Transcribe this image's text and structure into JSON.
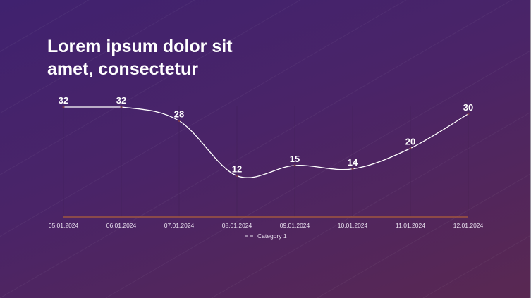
{
  "chart_data": {
    "type": "line",
    "title": "Lorem ipsum dolor sit amet, consectetur",
    "categories": [
      "05.01.2024",
      "06.01.2024",
      "07.01.2024",
      "08.01.2024",
      "09.01.2024",
      "10.01.2024",
      "11.01.2024",
      "12.01.2024"
    ],
    "series": [
      {
        "name": "Category 1",
        "values": [
          32,
          32,
          28,
          12,
          15,
          14,
          20,
          30
        ],
        "color": "#ffffff"
      }
    ],
    "ylim": [
      0,
      32
    ],
    "smooth": true,
    "data_labels": true,
    "legend": "bottom",
    "grid": false,
    "colors": {
      "axis": "#b0603a",
      "background_start": "#40226f",
      "background_end": "#592852"
    }
  }
}
